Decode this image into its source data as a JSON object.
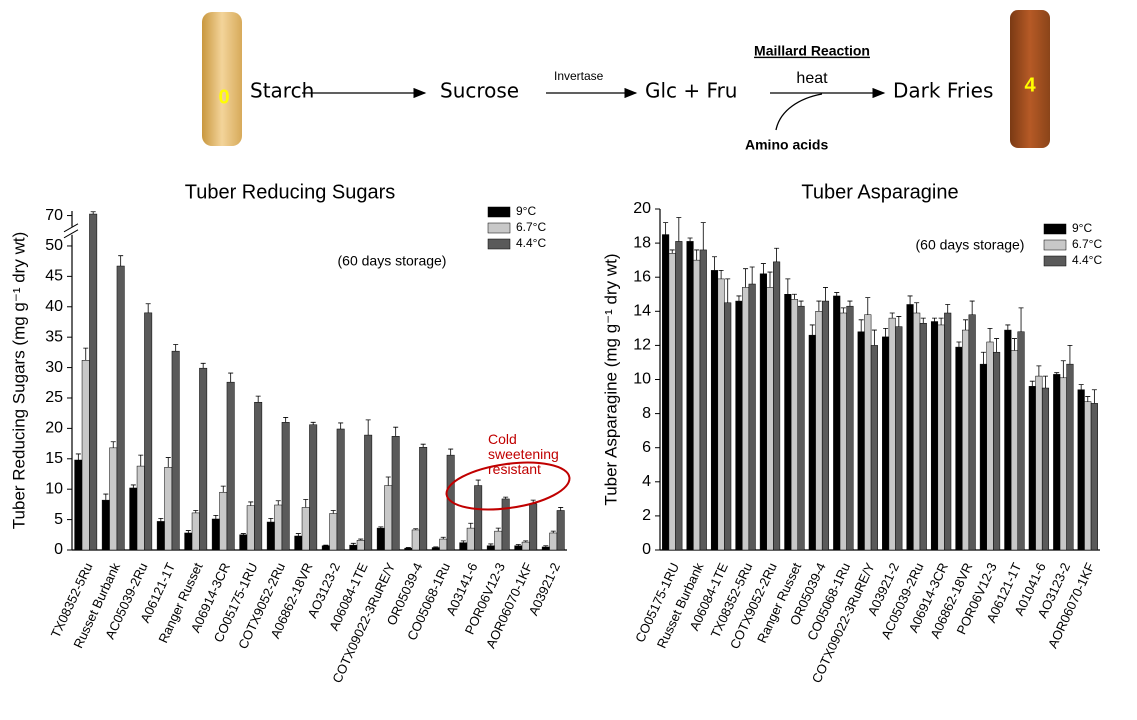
{
  "pathway": {
    "start_score": "0",
    "steps": [
      "Starch",
      "Sucrose",
      "Glc + Fru",
      "Dark Fries"
    ],
    "enzyme": "Invertase",
    "reaction": "Maillard Reaction",
    "condition": "heat",
    "cofactor": "Amino acids",
    "end_score": "4"
  },
  "chart_data": [
    {
      "type": "bar",
      "title": "Tuber Reducing Sugars",
      "y_label": "Tuber Reducing Sugars (mg g⁻¹ dry wt)",
      "annotation": "(60 days storage)",
      "callout": "Cold sweetening resistant",
      "callout_color": "#c00000",
      "categories": [
        "TX08352-5Ru",
        "Russet Burbank",
        "AC05039-2Ru",
        "A06121-1T",
        "Ranger Russet",
        "A06914-3CR",
        "CO05175-1RU",
        "COTX9052-2Ru",
        "A06862-18VR",
        "AO3123-2",
        "A06084-1TE",
        "COTX09022-3RuRE/Y",
        "OR05039-4",
        "CO05068-1Ru",
        "A03141-6",
        "POR06V12-3",
        "AOR06070-1KF",
        "A03921-2"
      ],
      "series": [
        {
          "name": "9°C",
          "color": "#000000",
          "values": [
            14.8,
            8.2,
            10.2,
            4.7,
            2.8,
            5.1,
            2.5,
            4.6,
            2.3,
            0.7,
            0.8,
            3.6,
            0.3,
            0.4,
            1.2,
            0.7,
            0.7,
            0.5
          ],
          "errors": [
            1,
            1,
            0.5,
            0.5,
            0.4,
            0.6,
            0.2,
            0.6,
            0.4,
            0.1,
            0.3,
            0.2,
            0.1,
            0.1,
            0.3,
            0.3,
            0.2,
            0.2
          ]
        },
        {
          "name": "6.7°C",
          "color": "#c8c8c8",
          "values": [
            31.2,
            16.8,
            13.8,
            13.6,
            6.1,
            9.5,
            7.3,
            7.4,
            7,
            6,
            1.6,
            10.6,
            3.3,
            1.8,
            3.6,
            3.1,
            1.3,
            2.8
          ],
          "errors": [
            2,
            1,
            1.8,
            1.6,
            0.4,
            1,
            0.6,
            0.7,
            1.3,
            0.5,
            0.2,
            1.4,
            0.2,
            0.3,
            0.8,
            0.5,
            0.2,
            0.3
          ]
        },
        {
          "name": "4.4°C",
          "color": "#5a5a5a",
          "values": [
            71,
            46.7,
            39,
            32.7,
            29.9,
            27.6,
            24.3,
            21,
            20.6,
            19.9,
            18.9,
            18.7,
            16.9,
            15.6,
            10.6,
            8.4,
            7.6,
            6.5
          ],
          "errors": [
            1.5,
            1.7,
            1.5,
            1.1,
            0.8,
            1.5,
            1,
            0.8,
            0.4,
            1,
            2.5,
            1.5,
            0.5,
            1,
            0.9,
            0.3,
            0.6,
            0.5
          ]
        }
      ],
      "ylim": [
        0,
        73
      ],
      "yticks": [
        0,
        5,
        10,
        15,
        20,
        25,
        30,
        35,
        40,
        45,
        50,
        70
      ],
      "axis_break": true,
      "legend": "upper right"
    },
    {
      "type": "bar",
      "title": "Tuber Asparagine",
      "y_label": "Tuber Asparagine (mg g⁻¹ dry wt)",
      "annotation": "(60 days storage)",
      "categories": [
        "CO05175-1RU",
        "Russet Burbank",
        "A06084-1TE",
        "TX08352-5Ru",
        "COTX9052-2Ru",
        "Ranger Russet",
        "OR05039-4",
        "CO05068-1Ru",
        "COTX09022-3RuRE/Y",
        "A03921-2",
        "AC05039-2Ru",
        "A06914-3CR",
        "A06862-18VR",
        "POR06V12-3",
        "A06121-1T",
        "A01041-6",
        "AO3123-2",
        "AOR06070-1KF"
      ],
      "series": [
        {
          "name": "9°C",
          "color": "#000000",
          "values": [
            18.5,
            18.1,
            16.4,
            14.6,
            16.2,
            15,
            12.6,
            14.9,
            12.8,
            12.5,
            14.4,
            13.4,
            11.9,
            10.9,
            12.9,
            9.6,
            10.3,
            9.4
          ],
          "errors": [
            0.7,
            0.2,
            0.8,
            0.3,
            0.6,
            0.9,
            0.6,
            0.2,
            0.7,
            0.5,
            0.5,
            0.2,
            0.3,
            0.7,
            0.3,
            0.3,
            0.1,
            0.3
          ]
        },
        {
          "name": "6.7°C",
          "color": "#c8c8c8",
          "values": [
            17.4,
            17,
            15.9,
            15.4,
            15.4,
            14.7,
            14,
            13.9,
            13.8,
            13.6,
            13.9,
            13.2,
            12.9,
            12.2,
            11.7,
            10.2,
            10.1,
            8.7
          ],
          "errors": [
            0.2,
            0.6,
            0.5,
            1.1,
            0.9,
            0.3,
            0.6,
            0.3,
            1,
            0.3,
            0.6,
            0.4,
            0.6,
            0.8,
            0.7,
            0.6,
            1,
            0.3
          ]
        },
        {
          "name": "4.4°C",
          "color": "#5a5a5a",
          "values": [
            18.1,
            17.6,
            14.5,
            15.6,
            16.9,
            14.3,
            14.6,
            14.3,
            12,
            13.1,
            13.3,
            13.9,
            13.8,
            11.6,
            12.8,
            9.5,
            10.9,
            8.6
          ],
          "errors": [
            1.4,
            1.6,
            1.4,
            1,
            0.8,
            0.3,
            0.8,
            0.3,
            0.9,
            0.6,
            0.3,
            0.5,
            0.8,
            0.8,
            1.4,
            0.7,
            1.1,
            0.8
          ]
        }
      ],
      "ylim": [
        0,
        20
      ],
      "yticks": [
        0,
        2,
        4,
        6,
        8,
        10,
        12,
        14,
        16,
        18,
        20
      ],
      "axis_break": false,
      "legend": "upper right"
    }
  ]
}
